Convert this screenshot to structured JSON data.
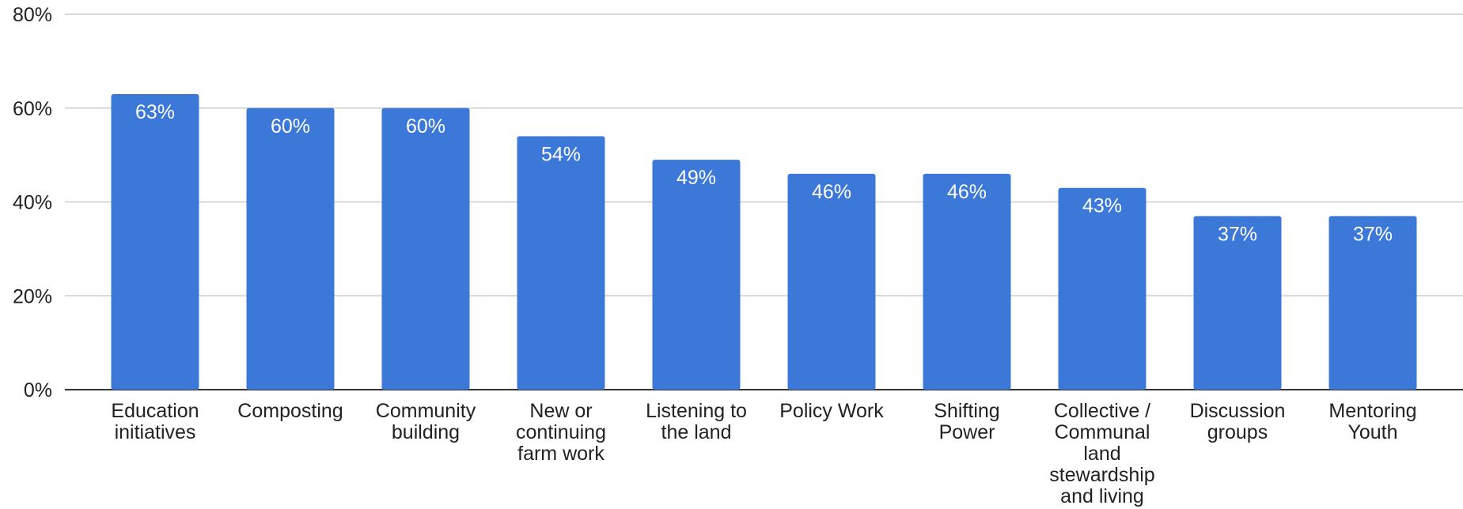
{
  "chart_data": {
    "type": "bar",
    "categories": [
      "Education initiatives",
      "Composting",
      "Community building",
      "New or continuing farm work",
      "Listening to the land",
      "Policy Work",
      "Shifting Power",
      "Collective / Communal land stewardship and living",
      "Discussion groups",
      "Mentoring Youth"
    ],
    "values": [
      63,
      60,
      60,
      54,
      49,
      46,
      46,
      43,
      37,
      37
    ],
    "value_labels": [
      "63%",
      "60%",
      "60%",
      "54%",
      "49%",
      "46%",
      "46%",
      "43%",
      "37%",
      "37%"
    ],
    "color": "#3c78d8",
    "ylim": [
      0,
      80
    ],
    "yticks": [
      {
        "value": 0,
        "label": "0%"
      },
      {
        "value": 20,
        "label": "20%"
      },
      {
        "value": 40,
        "label": "40%"
      },
      {
        "value": 60,
        "label": "60%"
      },
      {
        "value": 80,
        "label": "80%"
      }
    ],
    "grid": true
  }
}
